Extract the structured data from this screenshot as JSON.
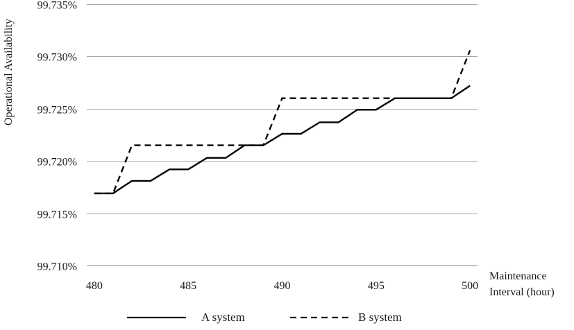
{
  "chart_data": {
    "type": "line",
    "title": "",
    "xlabel_lines": [
      "Maintenance",
      "Interval  (hour)"
    ],
    "ylabel": "Operational Availability",
    "x_ticks": [
      480,
      485,
      490,
      495,
      500
    ],
    "x_tick_labels": [
      "480",
      "485",
      "490",
      "495",
      "500"
    ],
    "xlim": [
      479.6,
      500.4
    ],
    "y_ticks": [
      99.71,
      99.715,
      99.72,
      99.725,
      99.73,
      99.735
    ],
    "y_tick_labels": [
      "99.710%",
      "99.715%",
      "99.720%",
      "99.725%",
      "99.730%",
      "99.735%"
    ],
    "ylim": [
      99.71,
      99.735
    ],
    "grid": "horizontal",
    "legend_position": "bottom",
    "x": [
      480,
      481,
      482,
      483,
      484,
      485,
      486,
      487,
      488,
      489,
      490,
      491,
      492,
      493,
      494,
      495,
      496,
      497,
      498,
      499,
      500
    ],
    "series": [
      {
        "name": "A system",
        "style": "solid",
        "values": [
          99.7169,
          99.7169,
          99.7181,
          99.7181,
          99.7192,
          99.7192,
          99.7203,
          99.7203,
          99.7215,
          99.7215,
          99.7226,
          99.7226,
          99.7237,
          99.7237,
          99.7249,
          99.7249,
          99.726,
          99.726,
          99.726,
          99.726,
          99.7272
        ]
      },
      {
        "name": "B system",
        "style": "dashed",
        "values": [
          99.7169,
          99.7169,
          99.7215,
          99.7215,
          99.7215,
          99.7215,
          99.7215,
          99.7215,
          99.7215,
          99.7215,
          99.726,
          99.726,
          99.726,
          99.726,
          99.726,
          99.726,
          99.726,
          99.726,
          99.726,
          99.726,
          99.7306
        ]
      }
    ]
  },
  "colors": {
    "line": "#000000",
    "grid": "#a6a6a6",
    "axis": "#7f7f7f"
  }
}
